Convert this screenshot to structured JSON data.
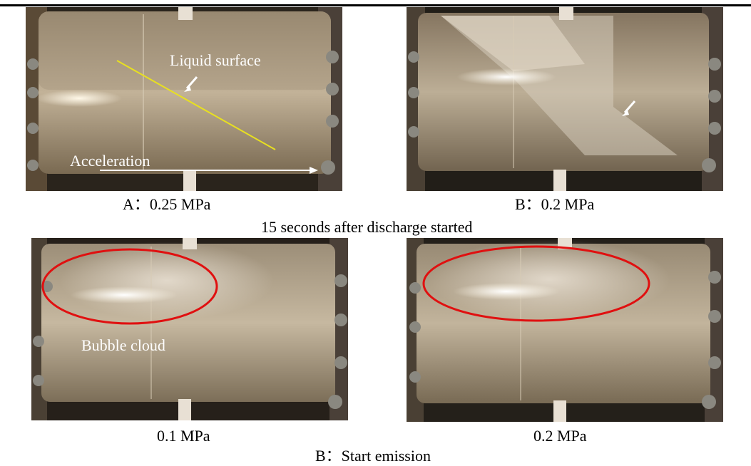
{
  "photos": [
    {
      "name": "Cylinder at A: 0.25 MPa",
      "caption": "A：0.25 MPa",
      "labels": {
        "liquid_surface": "Liquid surface",
        "acceleration": "Acceleration"
      }
    },
    {
      "name": "Cylinder at B: 0.2 MPa",
      "caption": "B：0.2 MPa"
    },
    {
      "name": "Cylinder at 0.1 MPa start emission",
      "caption": "0.1 MPa",
      "labels": {
        "bubble_cloud": "Bubble cloud"
      }
    },
    {
      "name": "Cylinder at 0.2 MPa start emission",
      "caption": "0.2 MPa"
    }
  ],
  "group_captions": {
    "top": "15 seconds after discharge started",
    "bottom": "B：Start emission"
  },
  "colors": {
    "liquid_surface_line": "#e8e020",
    "bubble_ellipse": "#e01010",
    "arrow": "#ffffff",
    "cylinder_fluid": "#b8a890",
    "frame": "#2a241c"
  }
}
